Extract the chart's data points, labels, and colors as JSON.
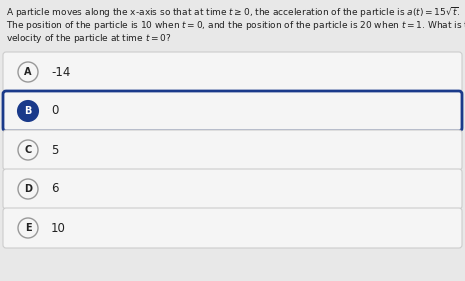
{
  "title_line1": "A particle moves along the x-axis so that at time $t \\geq 0$, the acceleration of the particle is $a(t) = 15\\sqrt{t}$.",
  "title_line2": "The position of the particle is 10 when $t = 0$, and the position of the particle is 20 when $t = 1$. What is the",
  "title_line3": "velocity of the particle at time $t = 0$?",
  "options": [
    {
      "label": "A",
      "value": "-14",
      "selected": false
    },
    {
      "label": "B",
      "value": "0",
      "selected": true
    },
    {
      "label": "C",
      "value": "5",
      "selected": false
    },
    {
      "label": "D",
      "value": "6",
      "selected": false
    },
    {
      "label": "E",
      "value": "10",
      "selected": false
    }
  ],
  "bg_color": "#e8e8e8",
  "box_color": "#f5f5f5",
  "box_edge_normal": "#cccccc",
  "box_edge_selected": "#1a3a8a",
  "circle_normal_fill": "#f5f5f5",
  "circle_normal_edge": "#999999",
  "circle_selected_fill": "#1a3a8a",
  "circle_selected_edge": "#1a3a8a",
  "text_color": "#222222",
  "font_size_question": 6.5,
  "font_size_option": 8.5,
  "font_size_label": 7.0
}
